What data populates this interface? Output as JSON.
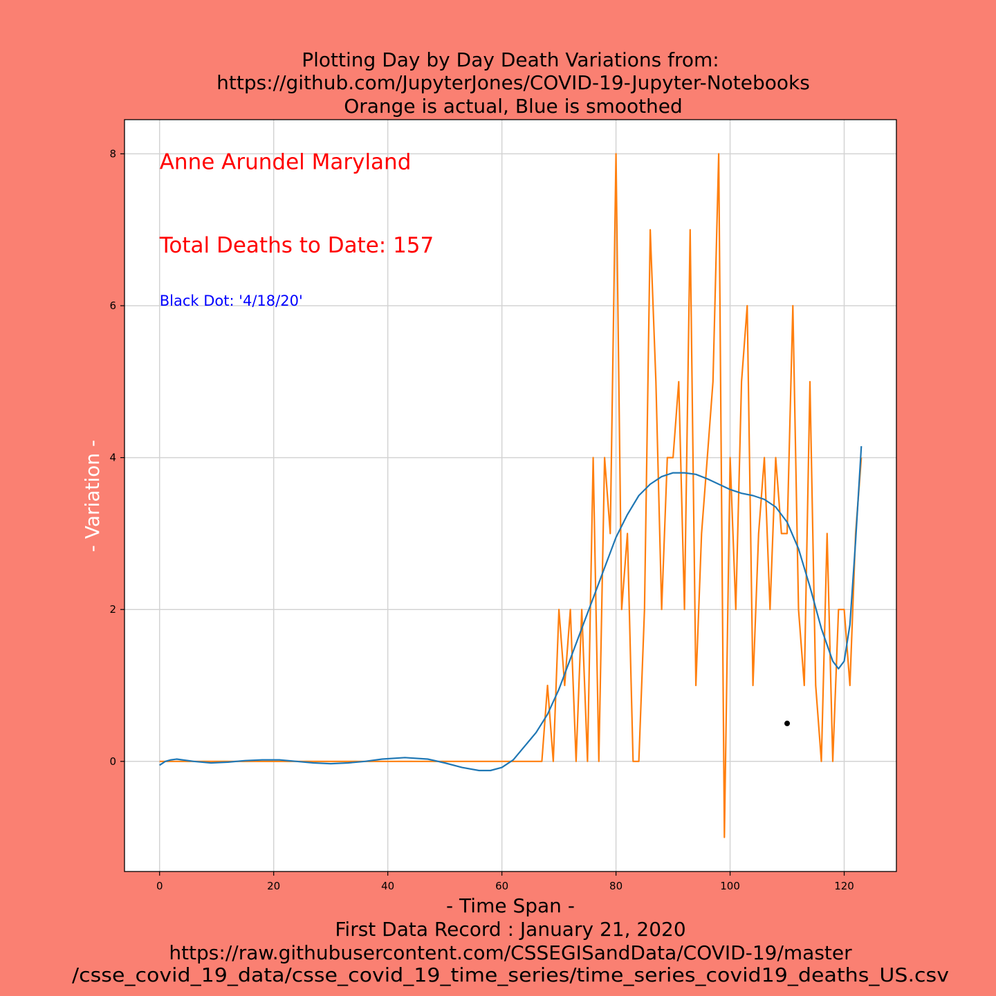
{
  "chart_data": {
    "type": "line",
    "title": [
      "Plotting Day by Day Death Variations from:",
      "https://github.com/JupyterJones/COVID-19-Jupyter-Notebooks",
      "Orange is actual, Blue is smoothed"
    ],
    "xlabel": [
      "- Time Span -",
      "First Data Record : January 21, 2020",
      "https://raw.githubusercontent.com/CSSEGISandData/COVID-19/master",
      "/csse_covid_19_data/csse_covid_19_time_series/time_series_covid19_deaths_US.csv"
    ],
    "ylabel": "- Variation -",
    "xlim": [
      -6.15,
      129.15
    ],
    "ylim": [
      -1.45,
      8.45
    ],
    "xticks": [
      0,
      20,
      40,
      60,
      80,
      100,
      120
    ],
    "yticks": [
      0,
      2,
      4,
      6,
      8
    ],
    "grid": true,
    "annotations": [
      {
        "text": "Anne Arundel Maryland",
        "x": 0,
        "y": 7.8,
        "color": "#ff0000"
      },
      {
        "text": "Total Deaths to Date: 157",
        "x": 0,
        "y": 6.7,
        "color": "#ff0000"
      },
      {
        "text": "Black Dot:  '4/18/20'",
        "x": 0,
        "y": 6.0,
        "color": "#0000ff"
      }
    ],
    "marker": {
      "x": 110,
      "y": 0.5,
      "color": "#000000"
    },
    "series": [
      {
        "name": "Orange is actual",
        "color": "#ff7f0e",
        "x": [
          0,
          67,
          68,
          69,
          70,
          71,
          72,
          73,
          74,
          75,
          76,
          77,
          78,
          79,
          80,
          81,
          82,
          83,
          84,
          85,
          86,
          87,
          88,
          89,
          90,
          91,
          92,
          93,
          94,
          95,
          96,
          97,
          98,
          99,
          100,
          101,
          102,
          103,
          104,
          105,
          106,
          107,
          108,
          109,
          110,
          111,
          112,
          113,
          114,
          115,
          116,
          117,
          118,
          119,
          120,
          121,
          122,
          123
        ],
        "y": [
          0,
          0,
          1,
          0,
          2,
          1,
          2,
          0,
          2,
          0,
          4,
          0,
          4,
          3,
          8,
          2,
          3,
          0,
          0,
          2,
          7,
          5,
          2,
          4,
          4,
          5,
          2,
          7,
          1,
          3,
          4,
          5,
          8,
          -1,
          4,
          2,
          5,
          6,
          1,
          3,
          4,
          2,
          4,
          3,
          3,
          6,
          2,
          1,
          5,
          1,
          0,
          3,
          0,
          2,
          2,
          1,
          3,
          4
        ]
      },
      {
        "name": "Blue is smoothed",
        "color": "#1f77b4",
        "x": [
          0,
          1,
          2,
          3,
          4,
          6,
          9,
          12,
          15,
          18,
          21,
          24,
          27,
          30,
          33,
          36,
          39,
          43,
          47,
          50,
          53,
          56,
          58,
          60,
          62,
          64,
          66,
          68,
          70,
          72,
          74,
          76,
          78,
          80,
          82,
          84,
          86,
          88,
          90,
          92,
          94,
          96,
          98,
          100,
          102,
          104,
          106,
          108,
          110,
          112,
          114,
          116,
          118,
          119,
          120,
          121,
          122,
          123
        ],
        "y": [
          -0.05,
          0.0,
          0.02,
          0.03,
          0.02,
          0.0,
          -0.02,
          -0.01,
          0.01,
          0.02,
          0.02,
          0.0,
          -0.02,
          -0.03,
          -0.02,
          0.0,
          0.03,
          0.05,
          0.03,
          -0.02,
          -0.08,
          -0.12,
          -0.12,
          -0.08,
          0.02,
          0.2,
          0.38,
          0.62,
          0.95,
          1.35,
          1.75,
          2.15,
          2.55,
          2.95,
          3.25,
          3.5,
          3.65,
          3.75,
          3.8,
          3.8,
          3.78,
          3.72,
          3.65,
          3.58,
          3.53,
          3.5,
          3.45,
          3.35,
          3.15,
          2.8,
          2.3,
          1.75,
          1.32,
          1.22,
          1.32,
          1.8,
          2.9,
          4.15
        ]
      }
    ]
  }
}
